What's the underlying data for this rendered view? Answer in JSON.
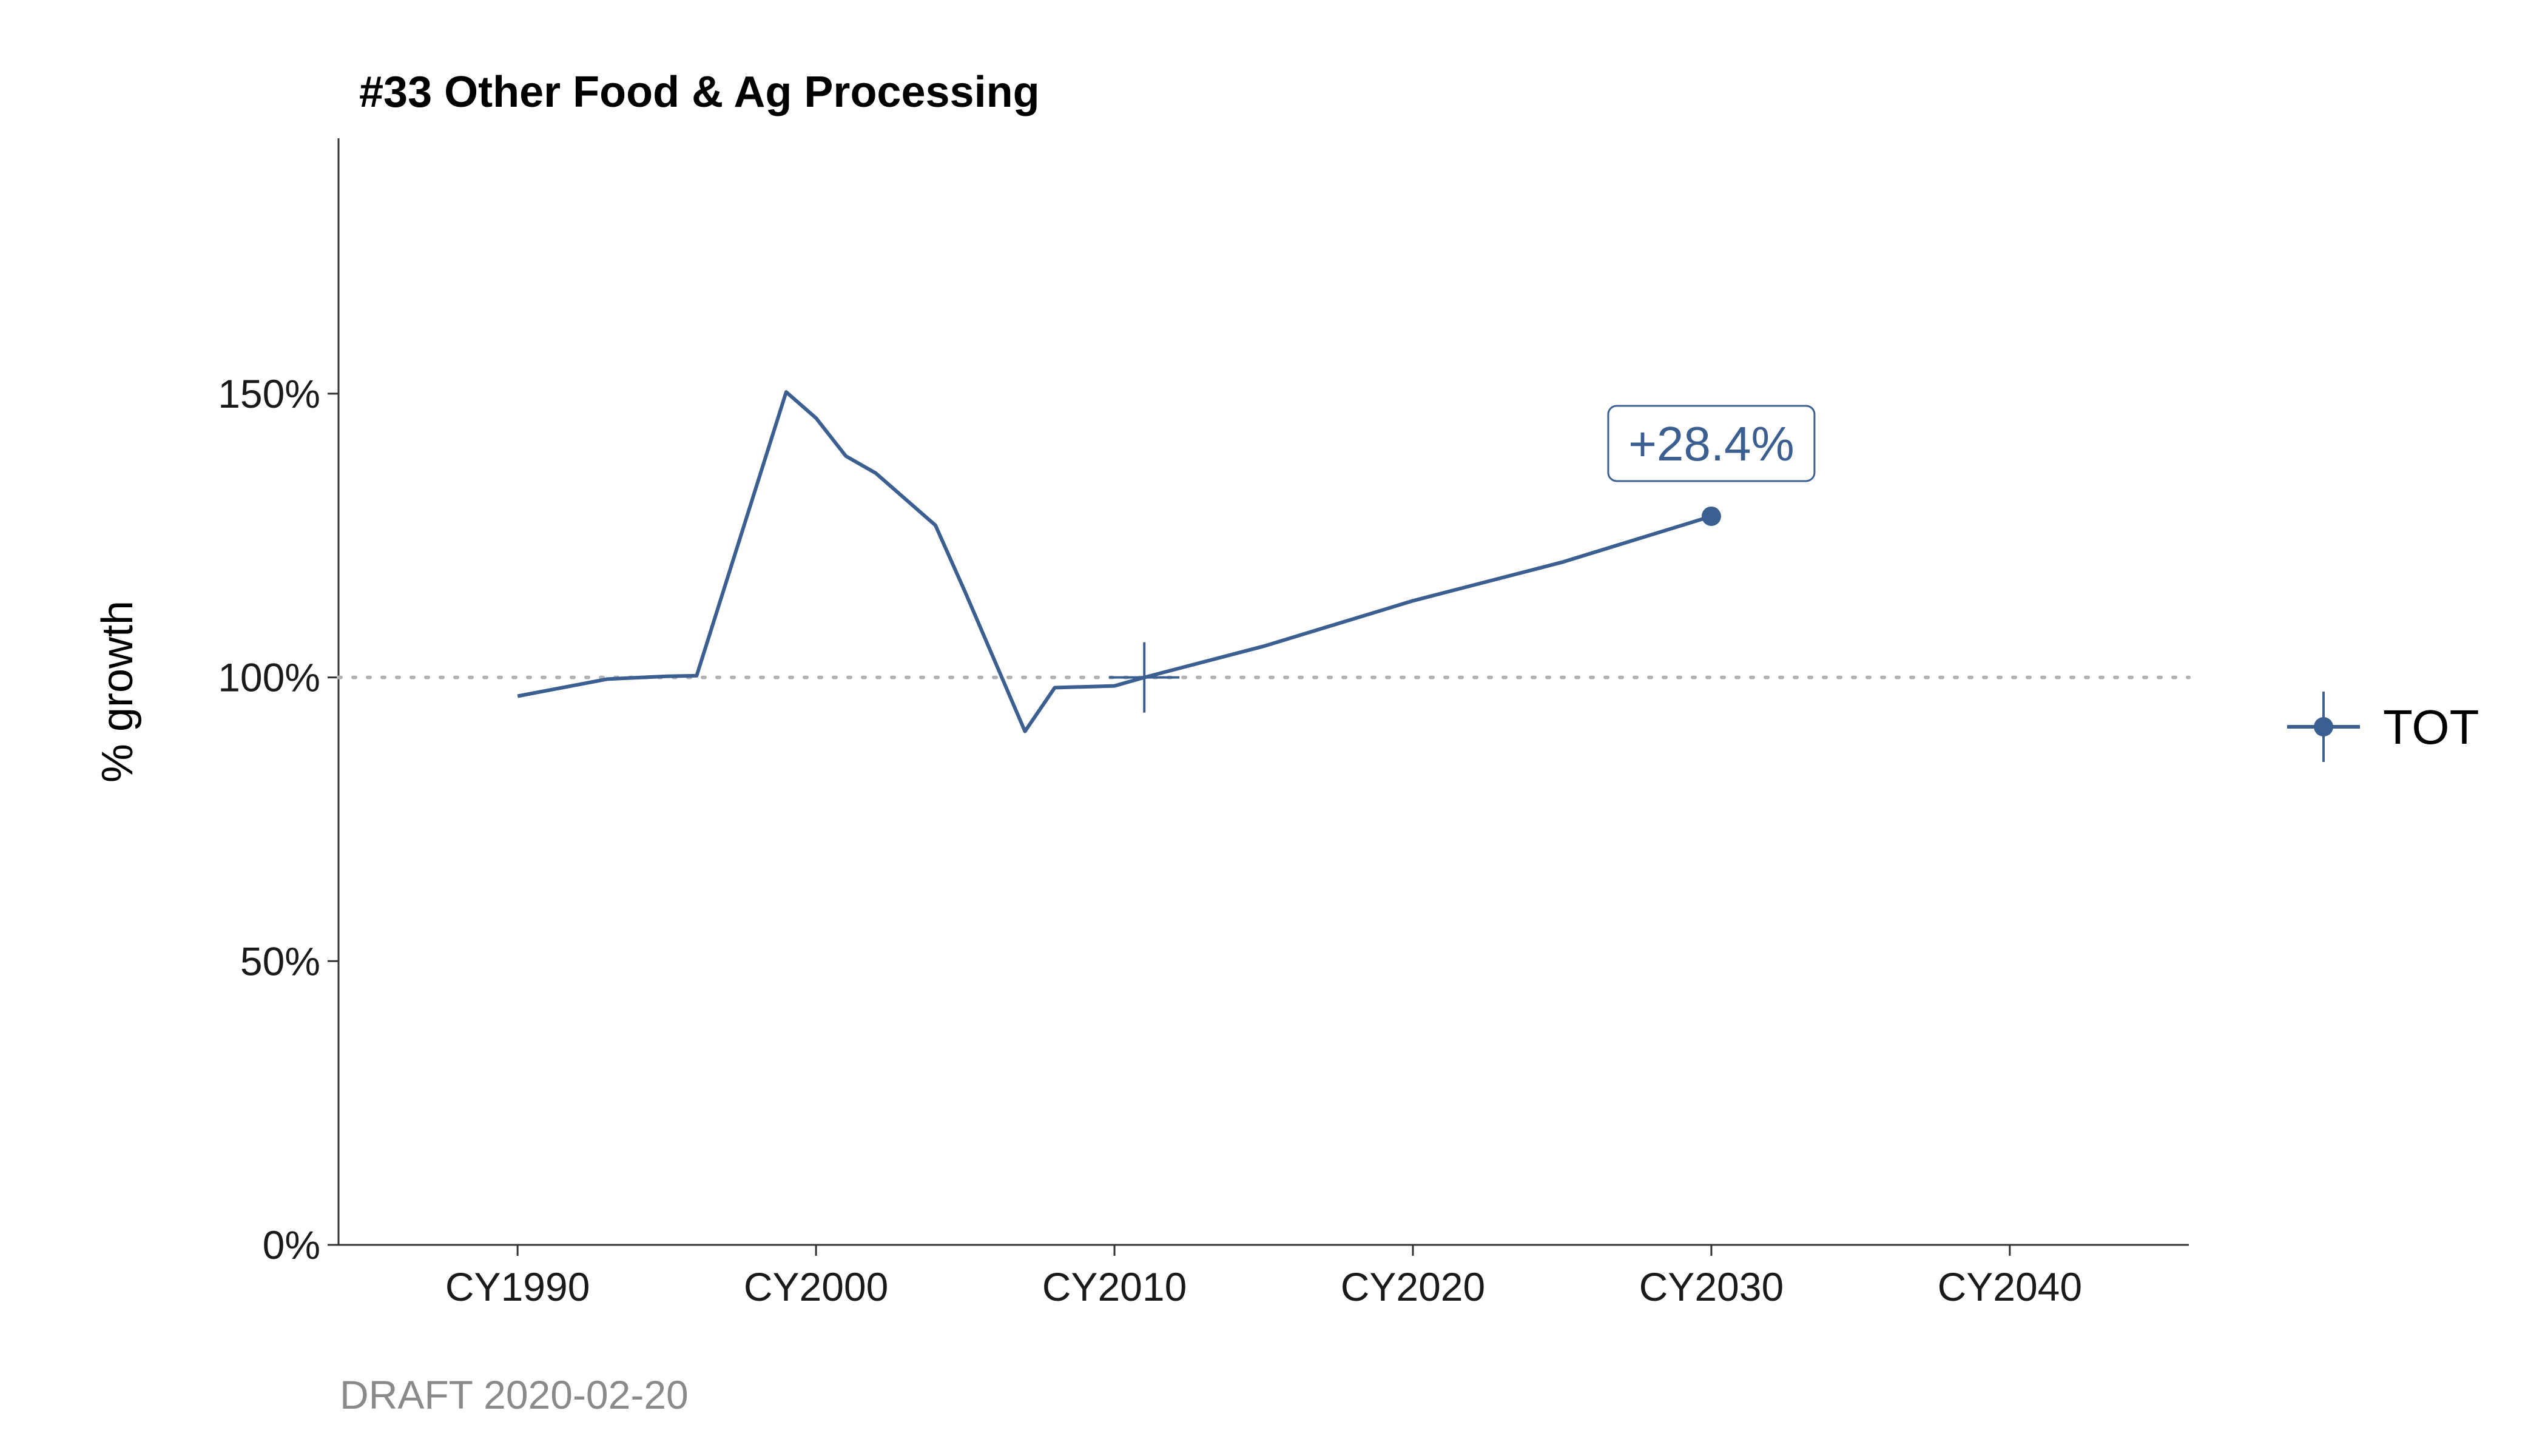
{
  "chart_data": {
    "type": "line",
    "title": "#33 Other Food & Ag Processing",
    "xlabel": "",
    "ylabel": "% growth",
    "caption": "DRAFT 2020-02-20",
    "xlim": [
      1984,
      2046
    ],
    "ylim": [
      0,
      1.95
    ],
    "x_ticks": [
      {
        "value": 1990,
        "label": "CY1990"
      },
      {
        "value": 2000,
        "label": "CY2000"
      },
      {
        "value": 2010,
        "label": "CY2010"
      },
      {
        "value": 2020,
        "label": "CY2020"
      },
      {
        "value": 2030,
        "label": "CY2030"
      },
      {
        "value": 2040,
        "label": "CY2040"
      }
    ],
    "y_ticks": [
      {
        "value": 0,
        "label": "0%"
      },
      {
        "value": 0.5,
        "label": "50%"
      },
      {
        "value": 1.0,
        "label": "100%"
      },
      {
        "value": 1.5,
        "label": "150%"
      }
    ],
    "reference_line": {
      "y": 1.0,
      "style": "dotted",
      "color": "#b3b3b3"
    },
    "grid": false,
    "legend": {
      "position": "right",
      "entries": [
        "TOT"
      ]
    },
    "series": [
      {
        "name": "TOT",
        "color": "#3b5f91",
        "points": [
          [
            1990,
            0.967
          ],
          [
            1993,
            0.997
          ],
          [
            1995,
            1.002
          ],
          [
            1996,
            1.003
          ],
          [
            1999,
            1.503
          ],
          [
            2000,
            1.457
          ],
          [
            2001,
            1.39
          ],
          [
            2002,
            1.36
          ],
          [
            2004,
            1.268
          ],
          [
            2005,
            1.15
          ],
          [
            2007,
            0.905
          ],
          [
            2008,
            0.982
          ],
          [
            2010,
            0.985
          ],
          [
            2011,
            1.0
          ],
          [
            2015,
            1.055
          ],
          [
            2020,
            1.135
          ],
          [
            2025,
            1.203
          ],
          [
            2030,
            1.284
          ]
        ],
        "base_year": 2011,
        "end_point": [
          2030,
          1.284
        ],
        "end_label": "+28.4%"
      }
    ]
  }
}
